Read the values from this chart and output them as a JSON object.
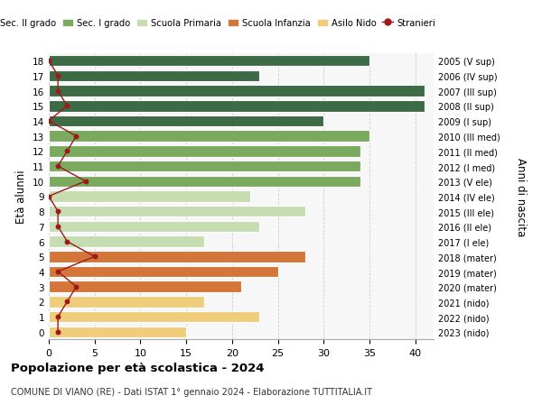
{
  "ages": [
    18,
    17,
    16,
    15,
    14,
    13,
    12,
    11,
    10,
    9,
    8,
    7,
    6,
    5,
    4,
    3,
    2,
    1,
    0
  ],
  "years": [
    "2005 (V sup)",
    "2006 (IV sup)",
    "2007 (III sup)",
    "2008 (II sup)",
    "2009 (I sup)",
    "2010 (III med)",
    "2011 (II med)",
    "2012 (I med)",
    "2013 (V ele)",
    "2014 (IV ele)",
    "2015 (III ele)",
    "2016 (II ele)",
    "2017 (I ele)",
    "2018 (mater)",
    "2019 (mater)",
    "2020 (mater)",
    "2021 (nido)",
    "2022 (nido)",
    "2023 (nido)"
  ],
  "bar_values": [
    35,
    23,
    41,
    41,
    30,
    35,
    34,
    34,
    34,
    22,
    28,
    23,
    17,
    28,
    25,
    21,
    17,
    23,
    15
  ],
  "bar_colors": [
    "#3d6b45",
    "#3d6b45",
    "#3d6b45",
    "#3d6b45",
    "#3d6b45",
    "#7aaa5e",
    "#7aaa5e",
    "#7aaa5e",
    "#7aaa5e",
    "#c5ddb0",
    "#c5ddb0",
    "#c5ddb0",
    "#c5ddb0",
    "#d4763a",
    "#d4763a",
    "#d4763a",
    "#f0cd7a",
    "#f0cd7a",
    "#f0cd7a"
  ],
  "stranieri_values": [
    0,
    1,
    1,
    2,
    0,
    3,
    2,
    1,
    4,
    0,
    1,
    1,
    2,
    5,
    1,
    3,
    2,
    1,
    1
  ],
  "legend_labels": [
    "Sec. II grado",
    "Sec. I grado",
    "Scuola Primaria",
    "Scuola Infanzia",
    "Asilo Nido",
    "Stranieri"
  ],
  "legend_colors": [
    "#3d6b45",
    "#7aaa5e",
    "#c5ddb0",
    "#d4763a",
    "#f0cd7a",
    "#9e1a1a"
  ],
  "title": "Popolazione per età scolastica - 2024",
  "subtitle": "COMUNE DI VIANO (RE) - Dati ISTAT 1° gennaio 2024 - Elaborazione TUTTITALIA.IT",
  "ylabel": "Età alunni",
  "right_label": "Anni di nascita",
  "xlim": [
    0,
    42
  ],
  "ylim": [
    -0.5,
    18.5
  ],
  "xticks": [
    0,
    5,
    10,
    15,
    20,
    25,
    30,
    35,
    40
  ],
  "stranieri_color": "#9e1a1a",
  "bar_height": 0.75,
  "background_color": "#ffffff",
  "plot_bg_color": "#f7f7f7"
}
